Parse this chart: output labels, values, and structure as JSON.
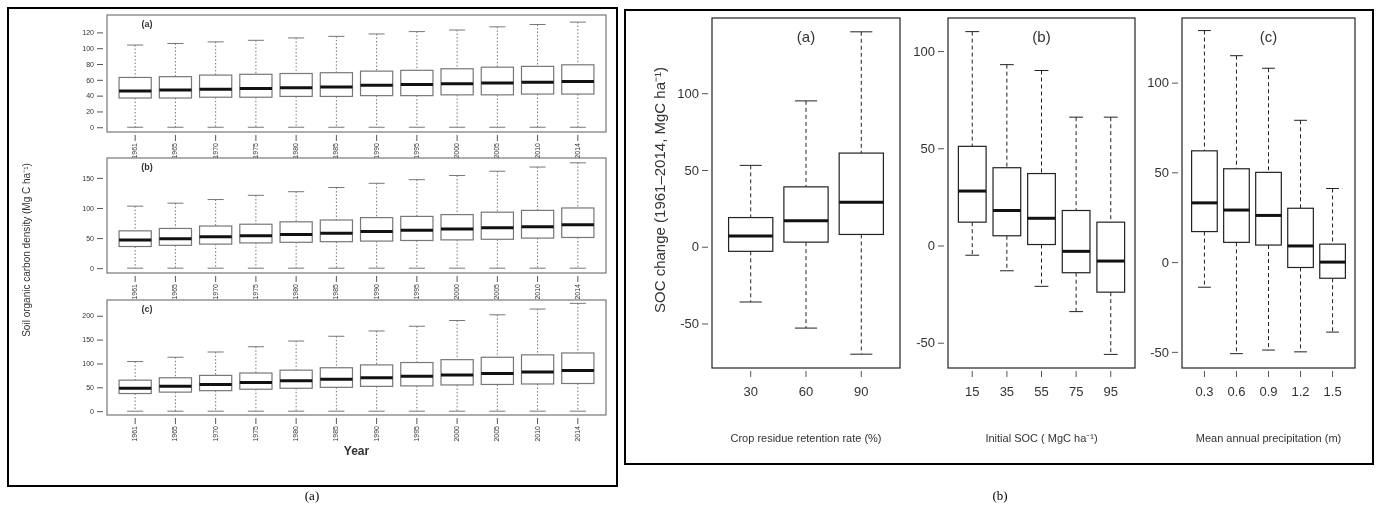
{
  "chart_data": [
    {
      "type": "box",
      "title": "(a)",
      "ylabel": "Soil organic carbon density (Mg C ha⁻¹)",
      "annotations": [
        "(a)"
      ],
      "categories": [
        "1961",
        "1965",
        "1970",
        "1975",
        "1980",
        "1985",
        "1990",
        "1995",
        "2000",
        "2005",
        "2010",
        "2014"
      ],
      "ylim": [
        -6,
        142
      ],
      "yticks": [
        0,
        20,
        40,
        60,
        80,
        100,
        120
      ],
      "boxes": [
        {
          "low": 0,
          "q1": 37,
          "median": 46,
          "q3": 63,
          "high": 104
        },
        {
          "low": 0,
          "q1": 37,
          "median": 47,
          "q3": 64,
          "high": 106
        },
        {
          "low": 0,
          "q1": 38,
          "median": 48,
          "q3": 66,
          "high": 108
        },
        {
          "low": 0,
          "q1": 38,
          "median": 49,
          "q3": 67,
          "high": 110
        },
        {
          "low": 0,
          "q1": 39,
          "median": 50,
          "q3": 68,
          "high": 113
        },
        {
          "low": 0,
          "q1": 39,
          "median": 51,
          "q3": 69,
          "high": 115
        },
        {
          "low": 0,
          "q1": 40,
          "median": 53,
          "q3": 71,
          "high": 118
        },
        {
          "low": 0,
          "q1": 40,
          "median": 54,
          "q3": 72,
          "high": 121
        },
        {
          "low": 0,
          "q1": 41,
          "median": 55,
          "q3": 74,
          "high": 123
        },
        {
          "low": 0,
          "q1": 41,
          "median": 56,
          "q3": 76,
          "high": 127
        },
        {
          "low": 0,
          "q1": 42,
          "median": 57,
          "q3": 77,
          "high": 130
        },
        {
          "low": 0,
          "q1": 42,
          "median": 58,
          "q3": 79,
          "high": 133
        }
      ]
    },
    {
      "type": "box",
      "title": "(b)",
      "categories": [
        "1961",
        "1965",
        "1970",
        "1975",
        "1980",
        "1985",
        "1990",
        "1995",
        "2000",
        "2005",
        "2010",
        "2014"
      ],
      "ylim": [
        -8,
        183
      ],
      "yticks": [
        0,
        50,
        100,
        150
      ],
      "boxes": [
        {
          "low": 0,
          "q1": 36,
          "median": 47,
          "q3": 62,
          "high": 103
        },
        {
          "low": 0,
          "q1": 38,
          "median": 49,
          "q3": 66,
          "high": 108
        },
        {
          "low": 0,
          "q1": 40,
          "median": 52,
          "q3": 70,
          "high": 114
        },
        {
          "low": 0,
          "q1": 42,
          "median": 54,
          "q3": 73,
          "high": 121
        },
        {
          "low": 0,
          "q1": 43,
          "median": 56,
          "q3": 77,
          "high": 127
        },
        {
          "low": 0,
          "q1": 44,
          "median": 58,
          "q3": 80,
          "high": 134
        },
        {
          "low": 0,
          "q1": 45,
          "median": 61,
          "q3": 84,
          "high": 141
        },
        {
          "low": 0,
          "q1": 46,
          "median": 63,
          "q3": 86,
          "high": 147
        },
        {
          "low": 0,
          "q1": 47,
          "median": 65,
          "q3": 89,
          "high": 154
        },
        {
          "low": 0,
          "q1": 48,
          "median": 67,
          "q3": 93,
          "high": 161
        },
        {
          "low": 0,
          "q1": 50,
          "median": 69,
          "q3": 96,
          "high": 168
        },
        {
          "low": 0,
          "q1": 51,
          "median": 72,
          "q3": 100,
          "high": 175
        }
      ]
    },
    {
      "type": "box",
      "title": "(c)",
      "xlabel": "Year",
      "categories": [
        "1961",
        "1965",
        "1970",
        "1975",
        "1980",
        "1985",
        "1990",
        "1995",
        "2000",
        "2005",
        "2010",
        "2014"
      ],
      "ylim": [
        -8,
        233
      ],
      "yticks": [
        0,
        50,
        100,
        150,
        200
      ],
      "boxes": [
        {
          "low": 0,
          "q1": 37,
          "median": 48,
          "q3": 65,
          "high": 104
        },
        {
          "low": 0,
          "q1": 40,
          "median": 52,
          "q3": 70,
          "high": 113
        },
        {
          "low": 0,
          "q1": 43,
          "median": 56,
          "q3": 75,
          "high": 124
        },
        {
          "low": 0,
          "q1": 46,
          "median": 60,
          "q3": 80,
          "high": 135
        },
        {
          "low": 0,
          "q1": 48,
          "median": 64,
          "q3": 86,
          "high": 147
        },
        {
          "low": 0,
          "q1": 50,
          "median": 67,
          "q3": 91,
          "high": 157
        },
        {
          "low": 0,
          "q1": 52,
          "median": 70,
          "q3": 97,
          "high": 168
        },
        {
          "low": 0,
          "q1": 53,
          "median": 73,
          "q3": 102,
          "high": 178
        },
        {
          "low": 0,
          "q1": 55,
          "median": 76,
          "q3": 108,
          "high": 190
        },
        {
          "low": 0,
          "q1": 56,
          "median": 79,
          "q3": 113,
          "high": 202
        },
        {
          "low": 0,
          "q1": 57,
          "median": 82,
          "q3": 118,
          "high": 214
        },
        {
          "low": 0,
          "q1": 58,
          "median": 85,
          "q3": 122,
          "high": 226
        }
      ]
    },
    {
      "type": "box",
      "title": "(a)",
      "ylabel": "SOC change (1961–2014, MgC ha⁻¹)",
      "xlabel": "Crop residue retention rate (%)",
      "annotations": [
        "(b)"
      ],
      "categories": [
        "30",
        "60",
        "90"
      ],
      "ylim": [
        -79,
        149
      ],
      "yticks": [
        -50,
        0,
        50,
        100
      ],
      "boxes": [
        {
          "low": -36,
          "q1": -3,
          "median": 7,
          "q3": 19,
          "high": 53
        },
        {
          "low": -53,
          "q1": 3,
          "median": 17,
          "q3": 39,
          "high": 95
        },
        {
          "low": -70,
          "q1": 8,
          "median": 29,
          "q3": 61,
          "high": 140
        }
      ]
    },
    {
      "type": "box",
      "title": "(b)",
      "xlabel": "Initial SOC ( MgC ha⁻¹)",
      "categories": [
        "15",
        "35",
        "55",
        "75",
        "95"
      ],
      "ylim": [
        -63,
        117
      ],
      "yticks": [
        -50,
        0,
        50,
        100
      ],
      "boxes": [
        {
          "low": -5,
          "q1": 12,
          "median": 28,
          "q3": 51,
          "high": 110
        },
        {
          "low": -13,
          "q1": 5,
          "median": 18,
          "q3": 40,
          "high": 93
        },
        {
          "low": -21,
          "q1": 0.5,
          "median": 14,
          "q3": 37,
          "high": 90
        },
        {
          "low": -34,
          "q1": -14,
          "median": -3,
          "q3": 18,
          "high": 66
        },
        {
          "low": -56,
          "q1": -24,
          "median": -8,
          "q3": 12,
          "high": 66
        }
      ]
    },
    {
      "type": "box",
      "title": "(c)",
      "xlabel": "Mean annual precipitation (m)",
      "categories": [
        "0.3",
        "0.6",
        "0.9",
        "1.2",
        "1.5"
      ],
      "ylim": [
        -59,
        136
      ],
      "yticks": [
        -50,
        0,
        50,
        100
      ],
      "boxes": [
        {
          "low": -14,
          "q1": 17,
          "median": 33,
          "q3": 62,
          "high": 129
        },
        {
          "low": -51,
          "q1": 11,
          "median": 29,
          "q3": 52,
          "high": 115
        },
        {
          "low": -49,
          "q1": 9.5,
          "median": 26,
          "q3": 50,
          "high": 108
        },
        {
          "low": -50,
          "q1": -3,
          "median": 9,
          "q3": 30,
          "high": 79
        },
        {
          "low": -39,
          "q1": -9,
          "median": 0,
          "q3": 10,
          "high": 41
        }
      ]
    }
  ]
}
